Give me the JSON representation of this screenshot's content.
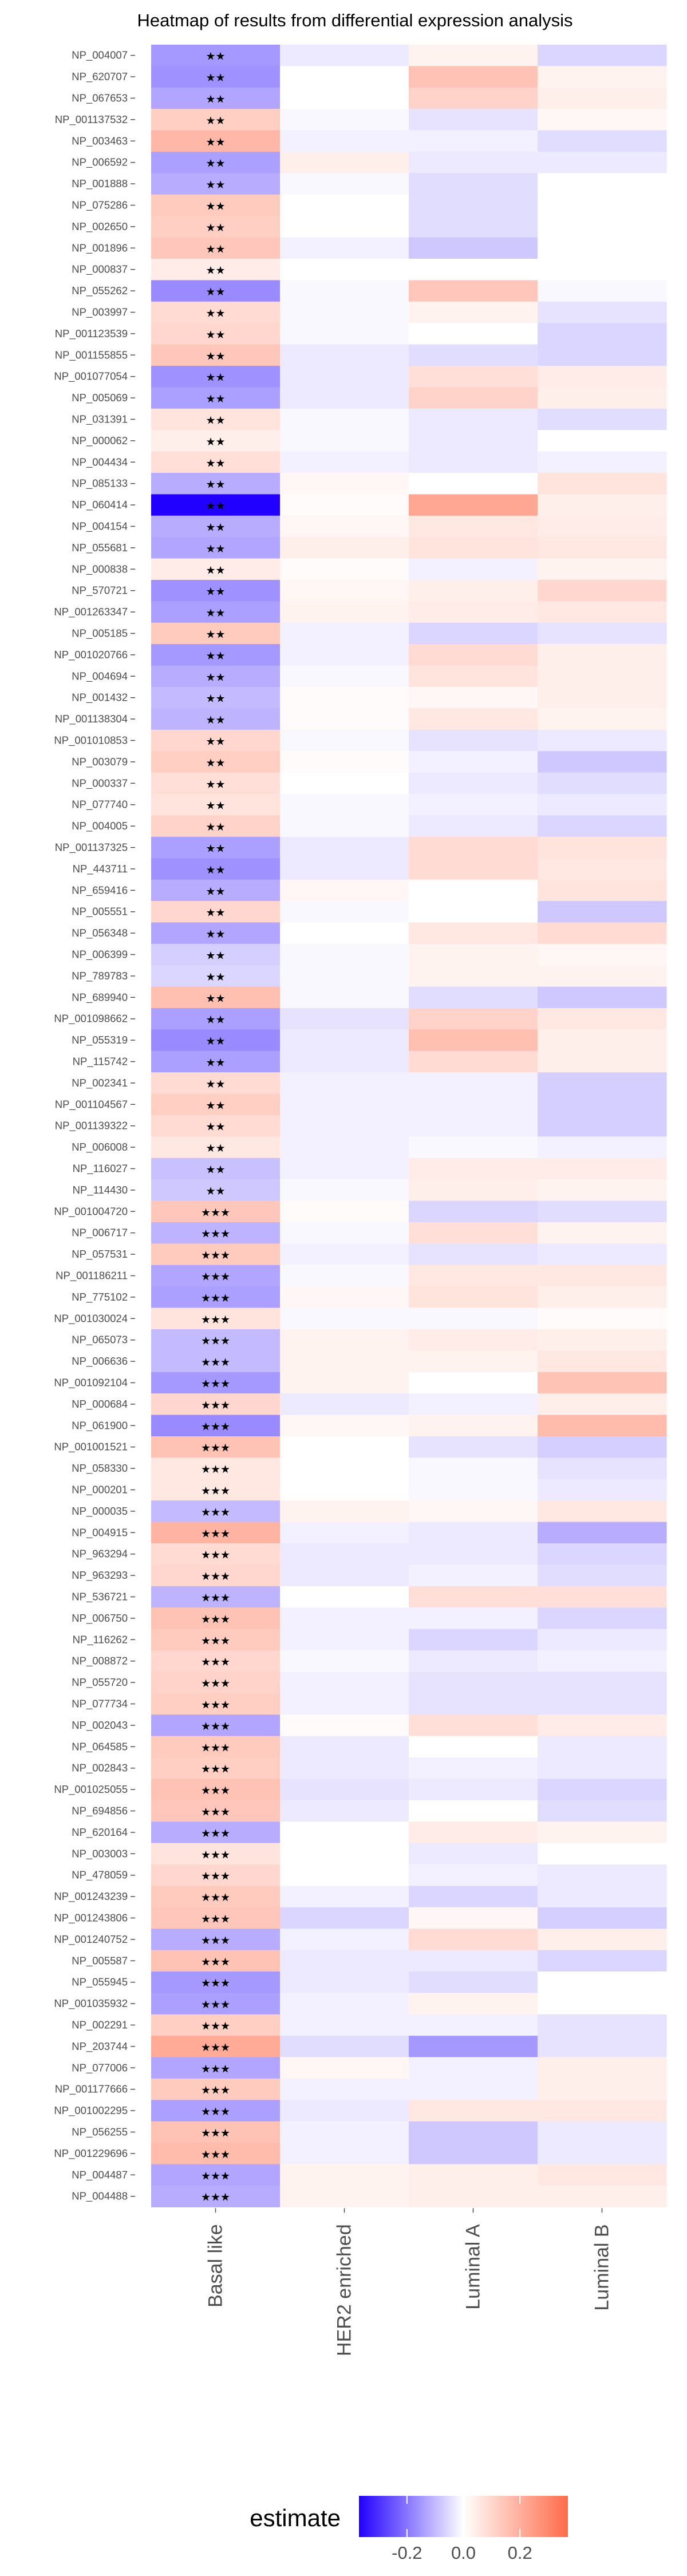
{
  "chart_data": {
    "type": "heatmap",
    "title": "Heatmap of results from differential expression analysis",
    "columns": [
      "Basal like",
      "HER2 enriched",
      "Luminal A",
      "Luminal B"
    ],
    "rows": [
      "NP_004007",
      "NP_620707",
      "NP_067653",
      "NP_001137532",
      "NP_003463",
      "NP_006592",
      "NP_001888",
      "NP_075286",
      "NP_002650",
      "NP_001896",
      "NP_000837",
      "NP_055262",
      "NP_003997",
      "NP_001123539",
      "NP_001155855",
      "NP_001077054",
      "NP_005069",
      "NP_031391",
      "NP_000062",
      "NP_004434",
      "NP_085133",
      "NP_060414",
      "NP_004154",
      "NP_055681",
      "NP_000838",
      "NP_570721",
      "NP_001263347",
      "NP_005185",
      "NP_001020766",
      "NP_004694",
      "NP_001432",
      "NP_001138304",
      "NP_001010853",
      "NP_003079",
      "NP_000337",
      "NP_077740",
      "NP_004005",
      "NP_001137325",
      "NP_443711",
      "NP_659416",
      "NP_005551",
      "NP_056348",
      "NP_006399",
      "NP_789783",
      "NP_689940",
      "NP_001098662",
      "NP_055319",
      "NP_115742",
      "NP_002341",
      "NP_001104567",
      "NP_001139322",
      "NP_006008",
      "NP_116027",
      "NP_114430",
      "NP_001004720",
      "NP_006717",
      "NP_057531",
      "NP_001186211",
      "NP_775102",
      "NP_001030024",
      "NP_065073",
      "NP_006636",
      "NP_001092104",
      "NP_000684",
      "NP_061900",
      "NP_001001521",
      "NP_058330",
      "NP_000201",
      "NP_000035",
      "NP_004915",
      "NP_963294",
      "NP_963293",
      "NP_536721",
      "NP_006750",
      "NP_116262",
      "NP_008872",
      "NP_055720",
      "NP_077734",
      "NP_002043",
      "NP_064585",
      "NP_002843",
      "NP_001025055",
      "NP_694856",
      "NP_620164",
      "NP_003003",
      "NP_478059",
      "NP_001243239",
      "NP_001243806",
      "NP_001240752",
      "NP_005587",
      "NP_055945",
      "NP_001035932",
      "NP_002291",
      "NP_203744",
      "NP_077006",
      "NP_001177666",
      "NP_001002295",
      "NP_056255",
      "NP_001229696",
      "NP_004487",
      "NP_004488"
    ],
    "values": [
      [
        -0.15,
        -0.03,
        0.03,
        -0.06
      ],
      [
        -0.16,
        0.0,
        0.15,
        0.03
      ],
      [
        -0.13,
        0.0,
        0.11,
        0.04
      ],
      [
        0.12,
        -0.01,
        -0.04,
        0.02
      ],
      [
        0.18,
        -0.02,
        -0.02,
        -0.05
      ],
      [
        -0.14,
        0.04,
        -0.03,
        -0.03
      ],
      [
        -0.12,
        -0.01,
        -0.05,
        0.0
      ],
      [
        0.13,
        0.0,
        -0.05,
        0.0
      ],
      [
        0.12,
        0.0,
        -0.05,
        0.0
      ],
      [
        0.14,
        -0.02,
        -0.08,
        0.0
      ],
      [
        0.05,
        0.0,
        0.0,
        0.0
      ],
      [
        -0.17,
        -0.01,
        0.14,
        -0.01
      ],
      [
        0.09,
        -0.01,
        0.03,
        -0.04
      ],
      [
        0.1,
        -0.01,
        0.0,
        -0.06
      ],
      [
        0.14,
        -0.03,
        -0.05,
        -0.06
      ],
      [
        -0.16,
        -0.03,
        0.08,
        0.05
      ],
      [
        -0.14,
        -0.03,
        0.11,
        0.04
      ],
      [
        0.07,
        -0.01,
        -0.03,
        -0.05
      ],
      [
        0.04,
        -0.01,
        -0.03,
        0.0
      ],
      [
        0.08,
        -0.02,
        -0.03,
        -0.02
      ],
      [
        -0.12,
        0.02,
        0.0,
        0.07
      ],
      [
        -0.37,
        0.01,
        0.22,
        0.04
      ],
      [
        -0.12,
        0.02,
        0.06,
        0.05
      ],
      [
        -0.13,
        0.04,
        0.07,
        0.06
      ],
      [
        0.05,
        0.01,
        -0.02,
        0.03
      ],
      [
        -0.16,
        0.02,
        0.04,
        0.1
      ],
      [
        -0.14,
        0.03,
        0.05,
        0.06
      ],
      [
        0.13,
        -0.02,
        -0.06,
        -0.04
      ],
      [
        -0.15,
        -0.02,
        0.09,
        0.04
      ],
      [
        -0.12,
        -0.01,
        0.07,
        0.04
      ],
      [
        -0.1,
        0.01,
        0.02,
        0.04
      ],
      [
        -0.11,
        0.01,
        0.06,
        0.03
      ],
      [
        0.1,
        -0.01,
        -0.04,
        -0.03
      ],
      [
        0.12,
        0.01,
        -0.02,
        -0.08
      ],
      [
        0.08,
        0.0,
        -0.03,
        -0.05
      ],
      [
        0.07,
        -0.01,
        -0.02,
        -0.03
      ],
      [
        0.11,
        -0.01,
        -0.03,
        -0.06
      ],
      [
        -0.14,
        -0.03,
        0.09,
        0.07
      ],
      [
        -0.16,
        -0.03,
        0.09,
        0.06
      ],
      [
        -0.12,
        0.02,
        0.0,
        0.07
      ],
      [
        0.1,
        -0.01,
        0.0,
        -0.08
      ],
      [
        -0.13,
        0.0,
        0.06,
        0.09
      ],
      [
        -0.07,
        -0.01,
        0.03,
        0.02
      ],
      [
        -0.06,
        -0.01,
        0.03,
        0.03
      ],
      [
        0.16,
        -0.01,
        -0.05,
        -0.08
      ],
      [
        -0.14,
        -0.04,
        0.11,
        0.06
      ],
      [
        -0.17,
        -0.03,
        0.16,
        0.04
      ],
      [
        -0.14,
        -0.03,
        0.09,
        0.04
      ],
      [
        0.09,
        -0.02,
        -0.02,
        -0.07
      ],
      [
        0.12,
        -0.02,
        -0.02,
        -0.07
      ],
      [
        0.09,
        -0.02,
        -0.02,
        -0.07
      ],
      [
        0.06,
        -0.02,
        -0.01,
        -0.02
      ],
      [
        -0.09,
        -0.02,
        0.05,
        0.05
      ],
      [
        -0.08,
        -0.01,
        0.04,
        0.03
      ],
      [
        0.14,
        0.01,
        -0.06,
        -0.05
      ],
      [
        -0.11,
        -0.01,
        0.08,
        0.03
      ],
      [
        0.13,
        -0.02,
        -0.04,
        -0.03
      ],
      [
        -0.13,
        -0.01,
        0.06,
        0.06
      ],
      [
        -0.14,
        0.02,
        0.07,
        0.04
      ],
      [
        0.07,
        -0.01,
        -0.01,
        0.01
      ],
      [
        -0.1,
        0.03,
        0.05,
        0.04
      ],
      [
        -0.1,
        0.03,
        0.03,
        0.06
      ],
      [
        -0.15,
        0.03,
        0.0,
        0.15
      ],
      [
        0.1,
        -0.03,
        -0.02,
        0.04
      ],
      [
        -0.17,
        0.02,
        0.03,
        0.17
      ],
      [
        0.15,
        0.0,
        -0.04,
        -0.07
      ],
      [
        0.06,
        0.0,
        -0.01,
        -0.04
      ],
      [
        0.06,
        0.0,
        -0.01,
        -0.03
      ],
      [
        -0.1,
        0.03,
        0.02,
        0.06
      ],
      [
        0.19,
        -0.02,
        -0.03,
        -0.12
      ],
      [
        0.09,
        -0.03,
        -0.03,
        -0.06
      ],
      [
        0.1,
        -0.03,
        -0.02,
        -0.05
      ],
      [
        -0.11,
        0.0,
        0.08,
        0.08
      ],
      [
        0.15,
        -0.02,
        -0.02,
        -0.06
      ],
      [
        0.13,
        -0.02,
        -0.06,
        -0.03
      ],
      [
        0.1,
        -0.01,
        -0.03,
        -0.02
      ],
      [
        0.11,
        -0.02,
        -0.04,
        -0.04
      ],
      [
        0.12,
        -0.02,
        -0.04,
        -0.04
      ],
      [
        -0.13,
        0.01,
        0.08,
        0.05
      ],
      [
        0.13,
        -0.03,
        0.0,
        -0.03
      ],
      [
        0.12,
        -0.03,
        -0.02,
        -0.03
      ],
      [
        0.15,
        -0.04,
        -0.03,
        -0.06
      ],
      [
        0.14,
        -0.03,
        0.0,
        -0.05
      ],
      [
        -0.12,
        0.0,
        0.05,
        0.03
      ],
      [
        0.07,
        0.0,
        -0.03,
        0.0
      ],
      [
        0.1,
        0.0,
        -0.02,
        -0.03
      ],
      [
        0.13,
        -0.02,
        -0.06,
        -0.03
      ],
      [
        0.14,
        -0.06,
        0.02,
        -0.07
      ],
      [
        -0.12,
        -0.02,
        0.09,
        0.04
      ],
      [
        0.15,
        -0.03,
        -0.03,
        -0.06
      ],
      [
        -0.15,
        -0.03,
        -0.05,
        0.0
      ],
      [
        -0.14,
        -0.02,
        0.03,
        0.0
      ],
      [
        0.12,
        -0.02,
        -0.02,
        -0.04
      ],
      [
        0.21,
        -0.05,
        -0.15,
        -0.04
      ],
      [
        -0.13,
        0.02,
        -0.02,
        0.04
      ],
      [
        0.13,
        -0.02,
        -0.02,
        0.04
      ],
      [
        -0.14,
        -0.03,
        0.06,
        0.06
      ],
      [
        0.15,
        -0.02,
        -0.08,
        -0.03
      ],
      [
        0.17,
        -0.02,
        -0.08,
        -0.03
      ],
      [
        -0.13,
        0.03,
        0.04,
        0.06
      ],
      [
        -0.12,
        0.03,
        0.04,
        0.04
      ]
    ],
    "significance": [
      "**",
      "**",
      "**",
      "**",
      "**",
      "**",
      "**",
      "**",
      "**",
      "**",
      "**",
      "**",
      "**",
      "**",
      "**",
      "**",
      "**",
      "**",
      "**",
      "**",
      "**",
      "**",
      "**",
      "**",
      "**",
      "**",
      "**",
      "**",
      "**",
      "**",
      "**",
      "**",
      "**",
      "**",
      "**",
      "**",
      "**",
      "**",
      "**",
      "**",
      "**",
      "**",
      "**",
      "**",
      "**",
      "**",
      "**",
      "**",
      "**",
      "**",
      "**",
      "**",
      "**",
      "**",
      "***",
      "***",
      "***",
      "***",
      "***",
      "***",
      "***",
      "***",
      "***",
      "***",
      "***",
      "***",
      "***",
      "***",
      "***",
      "***",
      "***",
      "***",
      "***",
      "***",
      "***",
      "***",
      "***",
      "***",
      "***",
      "***",
      "***",
      "***",
      "***",
      "***",
      "***",
      "***",
      "***",
      "***",
      "***",
      "***",
      "***",
      "***",
      "***",
      "***",
      "***",
      "***",
      "***",
      "***",
      "***",
      "***",
      "***"
    ],
    "color_scale": {
      "low": "#2200ff",
      "mid": "#ffffff",
      "high": "#ff6b4a",
      "range": [
        -0.37,
        0.37
      ]
    },
    "legend": {
      "title": "estimate",
      "ticks": [
        -0.2,
        0.0,
        0.2
      ],
      "tick_labels": [
        "-0.2",
        "0.0",
        "0.2"
      ],
      "placement": "bottom"
    }
  }
}
